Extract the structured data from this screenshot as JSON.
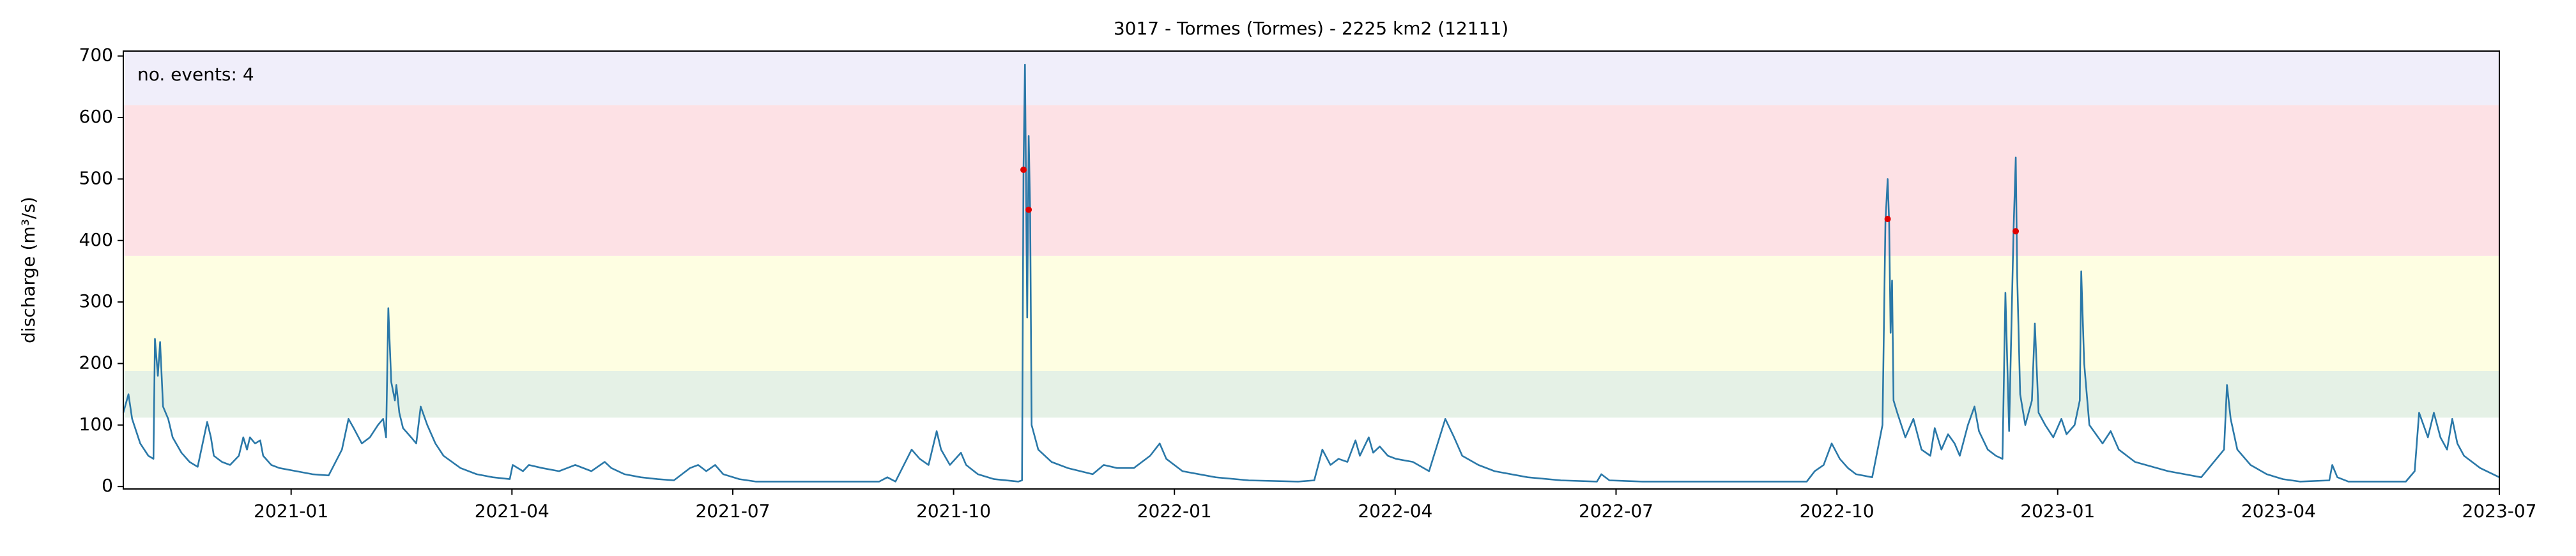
{
  "chart_data": {
    "type": "line",
    "title": "3017 - Tormes (Tormes) - 2225 km2 (12111)",
    "y_label": "discharge (m³/s)",
    "annotation": "no. events: 4",
    "annotation_color": "#d40000",
    "xlim": [
      -2.28,
      30.0
    ],
    "xticks": [
      {
        "value": 0,
        "label": "2021-01"
      },
      {
        "value": 3,
        "label": "2021-04"
      },
      {
        "value": 6,
        "label": "2021-07"
      },
      {
        "value": 9,
        "label": "2021-10"
      },
      {
        "value": 12,
        "label": "2022-01"
      },
      {
        "value": 15,
        "label": "2022-04"
      },
      {
        "value": 18,
        "label": "2022-07"
      },
      {
        "value": 21,
        "label": "2022-10"
      },
      {
        "value": 24,
        "label": "2023-01"
      },
      {
        "value": 27,
        "label": "2023-04"
      },
      {
        "value": 30,
        "label": "2023-07"
      }
    ],
    "ylim": [
      -4,
      708
    ],
    "yticks": [
      0,
      100,
      200,
      300,
      400,
      500,
      600,
      700
    ],
    "grid": false,
    "bands": [
      {
        "lower": 112,
        "upper": 188,
        "color": "#e5f1e6"
      },
      {
        "lower": 188,
        "upper": 375,
        "color": "#fefee2"
      },
      {
        "lower": 375,
        "upper": 620,
        "color": "#fde1e5"
      },
      {
        "lower": 620,
        "upper": 708,
        "color": "#f0eefa"
      }
    ],
    "series": [
      {
        "color": "#2a78a8",
        "x": [
          -2.28,
          -2.21,
          -2.16,
          -2.05,
          -1.94,
          -1.87,
          -1.85,
          -1.81,
          -1.78,
          -1.74,
          -1.67,
          -1.61,
          -1.49,
          -1.38,
          -1.27,
          -1.14,
          -1.09,
          -1.05,
          -0.94,
          -0.83,
          -0.71,
          -0.65,
          -0.6,
          -0.56,
          -0.49,
          -0.42,
          -0.38,
          -0.27,
          -0.16,
          0.07,
          0.29,
          0.51,
          0.69,
          0.78,
          0.85,
          0.96,
          1.07,
          1.18,
          1.25,
          1.29,
          1.32,
          1.36,
          1.41,
          1.43,
          1.47,
          1.52,
          1.63,
          1.7,
          1.76,
          1.85,
          1.96,
          2.07,
          2.3,
          2.52,
          2.74,
          2.97,
          3.01,
          3.15,
          3.23,
          3.41,
          3.64,
          3.86,
          4.08,
          4.26,
          4.35,
          4.53,
          4.75,
          4.98,
          5.2,
          5.31,
          5.42,
          5.53,
          5.64,
          5.76,
          5.87,
          6.09,
          6.31,
          6.76,
          7.43,
          7.99,
          8.1,
          8.21,
          8.43,
          8.54,
          8.66,
          8.77,
          8.83,
          8.95,
          9.1,
          9.17,
          9.33,
          9.55,
          9.88,
          9.93,
          9.95,
          9.97,
          10.0,
          10.02,
          10.04,
          10.06,
          10.15,
          10.33,
          10.55,
          10.89,
          11.04,
          11.22,
          11.45,
          11.67,
          11.8,
          11.89,
          12.11,
          12.56,
          13.01,
          13.68,
          13.9,
          14.01,
          14.12,
          14.23,
          14.35,
          14.46,
          14.52,
          14.64,
          14.7,
          14.79,
          14.9,
          15.01,
          15.24,
          15.46,
          15.68,
          15.8,
          15.91,
          16.13,
          16.35,
          16.8,
          17.25,
          17.74,
          17.8,
          17.91,
          18.36,
          19.7,
          20.59,
          20.7,
          20.82,
          20.93,
          21.04,
          21.15,
          21.26,
          21.48,
          21.62,
          21.66,
          21.69,
          21.71,
          21.73,
          21.75,
          21.77,
          21.82,
          21.93,
          22.04,
          22.15,
          22.27,
          22.33,
          22.42,
          22.51,
          22.6,
          22.67,
          22.78,
          22.87,
          22.93,
          23.05,
          23.16,
          23.25,
          23.29,
          23.34,
          23.4,
          23.43,
          23.45,
          23.49,
          23.56,
          23.65,
          23.69,
          23.74,
          23.83,
          23.94,
          24.05,
          24.12,
          24.23,
          24.3,
          24.32,
          24.36,
          24.43,
          24.61,
          24.72,
          24.83,
          25.05,
          25.5,
          25.95,
          26.26,
          26.3,
          26.35,
          26.44,
          26.62,
          26.84,
          27.06,
          27.29,
          27.69,
          27.73,
          27.8,
          27.95,
          28.73,
          28.85,
          28.91,
          29.03,
          29.11,
          29.2,
          29.29,
          29.36,
          29.43,
          29.52,
          29.74,
          30.0
        ],
        "values": [
          120,
          150,
          110,
          70,
          50,
          45,
          240,
          180,
          235,
          130,
          110,
          80,
          55,
          40,
          32,
          105,
          80,
          50,
          40,
          35,
          50,
          80,
          60,
          80,
          70,
          75,
          50,
          35,
          30,
          25,
          20,
          18,
          60,
          110,
          95,
          70,
          80,
          100,
          110,
          80,
          290,
          170,
          140,
          165,
          120,
          95,
          80,
          70,
          130,
          100,
          70,
          50,
          30,
          20,
          15,
          12,
          35,
          25,
          35,
          30,
          25,
          35,
          25,
          40,
          30,
          20,
          15,
          12,
          10,
          20,
          30,
          35,
          25,
          35,
          20,
          12,
          8,
          8,
          8,
          8,
          15,
          8,
          60,
          45,
          35,
          90,
          60,
          35,
          55,
          35,
          20,
          12,
          8,
          10,
          515,
          686,
          275,
          570,
          450,
          100,
          60,
          40,
          30,
          20,
          35,
          30,
          30,
          50,
          70,
          45,
          25,
          15,
          10,
          8,
          10,
          60,
          35,
          45,
          40,
          75,
          50,
          80,
          55,
          65,
          50,
          45,
          40,
          25,
          110,
          80,
          50,
          35,
          25,
          15,
          10,
          8,
          20,
          10,
          8,
          8,
          8,
          25,
          35,
          70,
          45,
          30,
          20,
          15,
          100,
          430,
          500,
          430,
          250,
          335,
          140,
          120,
          80,
          110,
          60,
          50,
          95,
          60,
          85,
          70,
          50,
          100,
          130,
          90,
          60,
          50,
          45,
          315,
          90,
          415,
          535,
          340,
          150,
          100,
          140,
          265,
          120,
          100,
          80,
          110,
          85,
          100,
          140,
          350,
          200,
          100,
          70,
          90,
          60,
          40,
          25,
          15,
          60,
          165,
          110,
          60,
          35,
          20,
          12,
          8,
          10,
          35,
          15,
          8,
          8,
          25,
          120,
          80,
          120,
          80,
          60,
          110,
          70,
          50,
          30,
          15
        ]
      },
      {
        "color": "#e00000",
        "x": [
          9.95,
          10.02,
          21.69,
          23.43
        ],
        "values": [
          515,
          450,
          435,
          415
        ]
      }
    ]
  }
}
